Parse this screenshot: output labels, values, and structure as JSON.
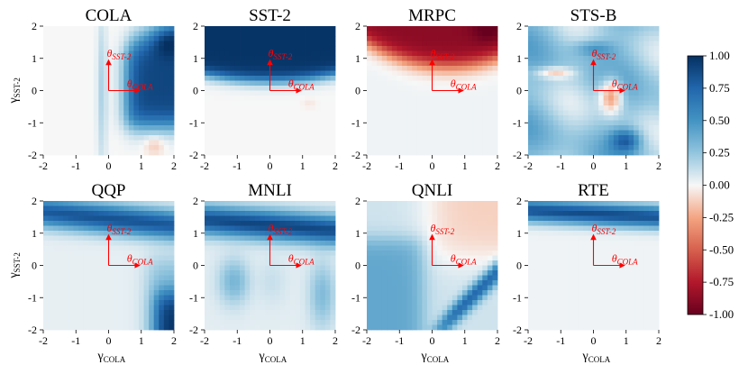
{
  "chart_data": {
    "type": "heatmap",
    "x_label_sym": "γ",
    "x_label_sub": "COLA",
    "y_label_sym": "γ",
    "y_label_sub": "SST-2",
    "xlim": [
      -2,
      2
    ],
    "ylim": [
      -2,
      2
    ],
    "x_ticks": [
      "-2",
      "-1",
      "0",
      "1",
      "2"
    ],
    "y_ticks": [
      "2",
      "1",
      "0",
      "-1",
      "-2"
    ],
    "origin_arrows": {
      "color": "#ff0000",
      "vertical_label_sym": "θ",
      "vertical_label_sub": "SST-2",
      "horizontal_label_sym": "θ",
      "horizontal_label_sub": "COLA",
      "origin": [
        0,
        0
      ],
      "vertical_end": [
        0,
        1
      ],
      "horizontal_end": [
        1,
        0
      ]
    },
    "colorbar": {
      "range": [
        -1.0,
        1.0
      ],
      "ticks": [
        "1.00",
        "0.75",
        "0.50",
        "0.25",
        "0.00",
        "-0.25",
        "-0.50",
        "-0.75",
        "-1.00"
      ],
      "colormap": "RdBu"
    },
    "panels": [
      {
        "title": "COLA",
        "summary": "mostly near 0; strong positive region for γ_COLA between 0.5 and 2 and γ_SST-2 between -1 and 1.5",
        "peak_value": 0.95
      },
      {
        "title": "SST-2",
        "summary": "strong positive band for γ_SST-2 above about 0.4",
        "peak_value": 1.0
      },
      {
        "title": "MRPC",
        "summary": "strong negative band for γ_SST-2 above about 0.8, strongest at top-right",
        "peak_value": -0.95
      },
      {
        "title": "STS-B",
        "summary": "mixed weak positive swirls, negative blob near (0.5, 0), positive blob near (1, -1.5)",
        "peak_value": 0.7
      },
      {
        "title": "QQP",
        "summary": "positive band around γ_SST-2 between 1 and 2, positive patch bottom-right",
        "peak_value": 0.8
      },
      {
        "title": "MNLI",
        "summary": "positive band around γ_SST-2 between 0.8 and 1.8, weak positive arcs below",
        "peak_value": 0.85
      },
      {
        "title": "QNLI",
        "summary": "weak positive block left, weak negative top-right, positive diagonal band lower-right",
        "peak_value": 0.6
      },
      {
        "title": "RTE",
        "summary": "positive band around γ_SST-2 between 1.2 and 2",
        "peak_value": 0.85
      }
    ]
  }
}
